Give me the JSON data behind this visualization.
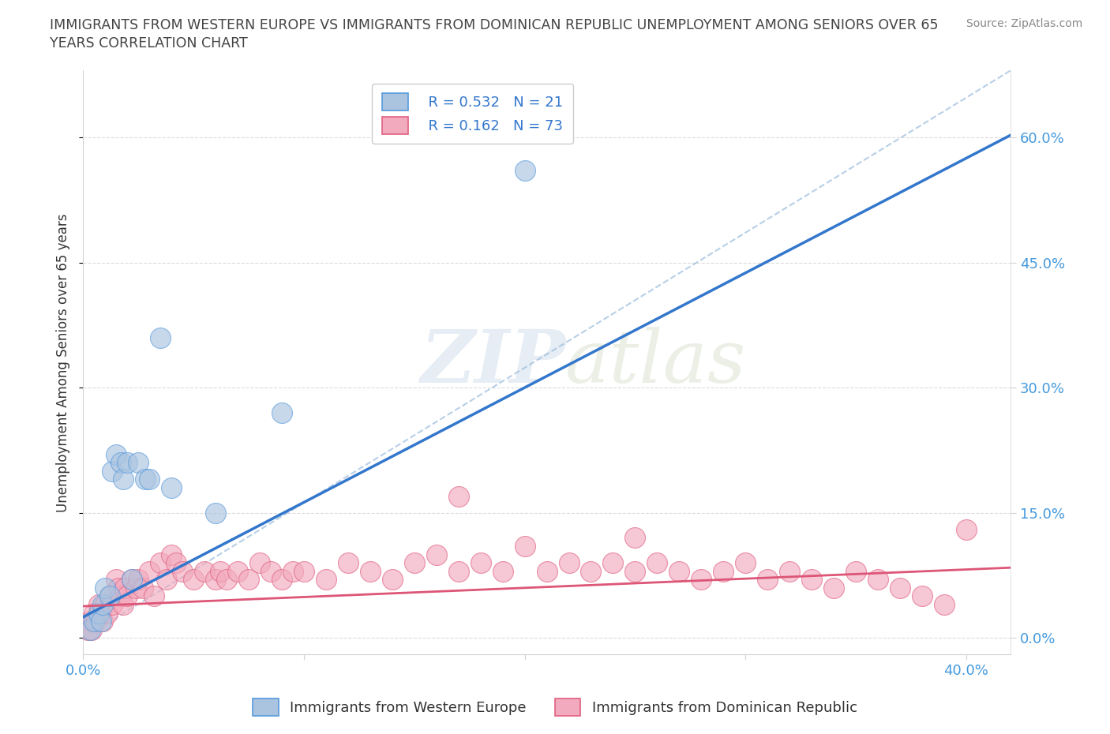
{
  "title_line1": "IMMIGRANTS FROM WESTERN EUROPE VS IMMIGRANTS FROM DOMINICAN REPUBLIC UNEMPLOYMENT AMONG SENIORS OVER 65",
  "title_line2": "YEARS CORRELATION CHART",
  "source_text": "Source: ZipAtlas.com",
  "ylabel": "Unemployment Among Seniors over 65 years",
  "xlim": [
    0.0,
    0.42
  ],
  "ylim": [
    -0.02,
    0.68
  ],
  "xticks": [
    0.0,
    0.1,
    0.2,
    0.3,
    0.4
  ],
  "xtick_labels": [
    "0.0%",
    "",
    "",
    "",
    "40.0%"
  ],
  "ytick_labels": [
    "0.0%",
    "15.0%",
    "30.0%",
    "45.0%",
    "60.0%"
  ],
  "yticks": [
    0.0,
    0.15,
    0.3,
    0.45,
    0.6
  ],
  "blue_color": "#aac4e0",
  "pink_color": "#f2aabe",
  "blue_edge_color": "#5599dd",
  "pink_edge_color": "#e06080",
  "blue_line_color": "#3377cc",
  "pink_line_color": "#dd5577",
  "legend_r1": "R = 0.532",
  "legend_n1": "N = 21",
  "legend_r2": "R = 0.162",
  "legend_n2": "N = 73",
  "legend_label1": "Immigrants from Western Europe",
  "legend_label2": "Immigrants from Dominican Republic",
  "watermark_zip": "ZIP",
  "watermark_atlas": "atlas",
  "blue_scatter_x": [
    0.003,
    0.005,
    0.007,
    0.008,
    0.009,
    0.01,
    0.012,
    0.013,
    0.015,
    0.017,
    0.018,
    0.02,
    0.022,
    0.025,
    0.028,
    0.03,
    0.035,
    0.04,
    0.06,
    0.09,
    0.2
  ],
  "blue_scatter_y": [
    0.01,
    0.02,
    0.03,
    0.02,
    0.04,
    0.06,
    0.05,
    0.2,
    0.22,
    0.21,
    0.19,
    0.21,
    0.07,
    0.21,
    0.19,
    0.19,
    0.36,
    0.18,
    0.15,
    0.27,
    0.56
  ],
  "pink_scatter_x": [
    0.002,
    0.003,
    0.004,
    0.005,
    0.006,
    0.007,
    0.008,
    0.009,
    0.01,
    0.011,
    0.012,
    0.013,
    0.015,
    0.016,
    0.017,
    0.018,
    0.019,
    0.02,
    0.022,
    0.024,
    0.025,
    0.027,
    0.03,
    0.032,
    0.035,
    0.038,
    0.04,
    0.042,
    0.045,
    0.05,
    0.055,
    0.06,
    0.062,
    0.065,
    0.07,
    0.075,
    0.08,
    0.085,
    0.09,
    0.095,
    0.1,
    0.11,
    0.12,
    0.13,
    0.14,
    0.15,
    0.16,
    0.17,
    0.18,
    0.19,
    0.2,
    0.21,
    0.22,
    0.23,
    0.24,
    0.25,
    0.26,
    0.27,
    0.28,
    0.29,
    0.3,
    0.31,
    0.32,
    0.33,
    0.34,
    0.35,
    0.36,
    0.37,
    0.38,
    0.39,
    0.4,
    0.17,
    0.25
  ],
  "pink_scatter_y": [
    0.01,
    0.02,
    0.01,
    0.03,
    0.02,
    0.04,
    0.03,
    0.02,
    0.04,
    0.03,
    0.05,
    0.04,
    0.07,
    0.06,
    0.05,
    0.04,
    0.06,
    0.05,
    0.07,
    0.06,
    0.07,
    0.06,
    0.08,
    0.05,
    0.09,
    0.07,
    0.1,
    0.09,
    0.08,
    0.07,
    0.08,
    0.07,
    0.08,
    0.07,
    0.08,
    0.07,
    0.09,
    0.08,
    0.07,
    0.08,
    0.08,
    0.07,
    0.09,
    0.08,
    0.07,
    0.09,
    0.1,
    0.08,
    0.09,
    0.08,
    0.11,
    0.08,
    0.09,
    0.08,
    0.09,
    0.08,
    0.09,
    0.08,
    0.07,
    0.08,
    0.09,
    0.07,
    0.08,
    0.07,
    0.06,
    0.08,
    0.07,
    0.06,
    0.05,
    0.04,
    0.13,
    0.17,
    0.12
  ]
}
